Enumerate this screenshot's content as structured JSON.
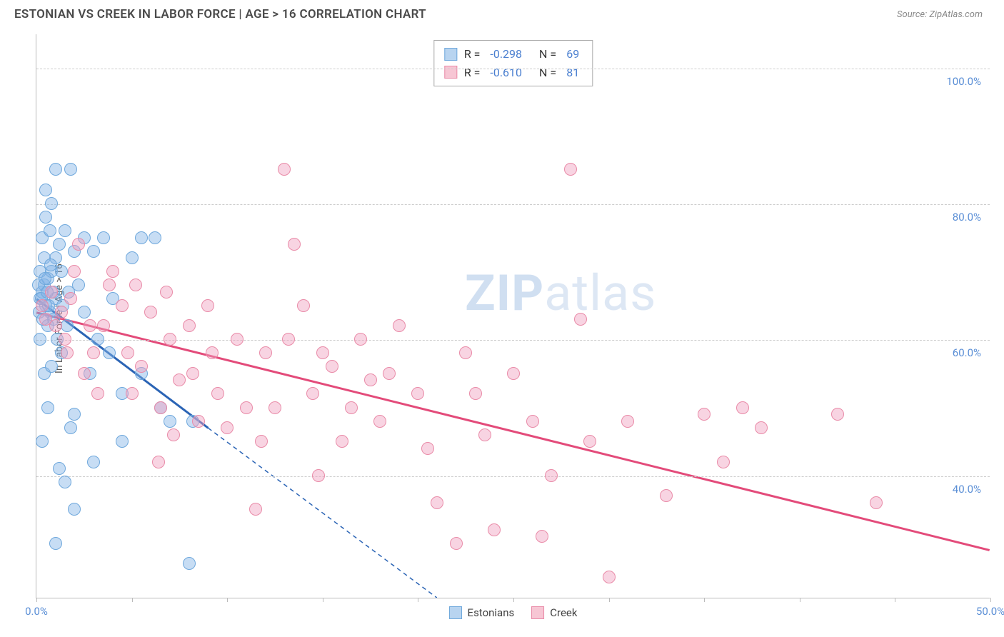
{
  "header": {
    "title": "ESTONIAN VS CREEK IN LABOR FORCE | AGE > 16 CORRELATION CHART",
    "source_prefix": "Source: ",
    "source_name": "ZipAtlas.com"
  },
  "watermark": {
    "zip": "ZIP",
    "atlas": "atlas"
  },
  "chart": {
    "type": "scatter",
    "y_axis_label": "In Labor Force | Age > 16",
    "xlim": [
      0,
      50
    ],
    "ylim": [
      22,
      105
    ],
    "x_ticks": [
      0,
      5,
      10,
      15,
      20,
      25,
      30,
      35,
      40,
      45,
      50
    ],
    "x_tick_labels": {
      "0": "0.0%",
      "50": "50.0%"
    },
    "y_gridlines": [
      40,
      60,
      80,
      100
    ],
    "y_tick_labels": {
      "40": "40.0%",
      "60": "60.0%",
      "80": "80.0%",
      "100": "100.0%"
    },
    "background_color": "#ffffff",
    "grid_color": "#cccccc",
    "axis_color": "#bbbbbb",
    "label_color": "#5b8fd6",
    "point_radius": 9,
    "point_opacity": 0.55
  },
  "stats_box": {
    "rows": [
      {
        "swatch_fill": "#b8d4f0",
        "swatch_border": "#6fa8dc",
        "r_label": "R =",
        "r_val": "-0.298",
        "n_label": "N =",
        "n_val": "69"
      },
      {
        "swatch_fill": "#f7c6d4",
        "swatch_border": "#e98ba8",
        "r_label": "R =",
        "r_val": "-0.610",
        "n_label": "N =",
        "n_val": "81"
      }
    ]
  },
  "legend": {
    "items": [
      {
        "label": "Estonians",
        "fill": "#b8d4f0",
        "border": "#6fa8dc"
      },
      {
        "label": "Creek",
        "fill": "#f7c6d4",
        "border": "#e98ba8"
      }
    ]
  },
  "series": [
    {
      "name": "Estonians",
      "color_fill": "rgba(130,180,230,0.45)",
      "color_border": "#6fa8dc",
      "trend": {
        "color": "#2b64b5",
        "width": 3,
        "solid": {
          "x1": 0,
          "y1": 66,
          "x2": 9,
          "y2": 47
        },
        "dashed": {
          "x1": 9,
          "y1": 47,
          "x2": 21,
          "y2": 22
        }
      },
      "points": [
        [
          0.2,
          66
        ],
        [
          0.3,
          67
        ],
        [
          0.4,
          68
        ],
        [
          0.5,
          65
        ],
        [
          0.6,
          69
        ],
        [
          0.7,
          64
        ],
        [
          0.8,
          70
        ],
        [
          0.9,
          63
        ],
        [
          1.0,
          72
        ],
        [
          1.1,
          60
        ],
        [
          1.2,
          74
        ],
        [
          1.3,
          58
        ],
        [
          1.5,
          76
        ],
        [
          1.0,
          85
        ],
        [
          1.8,
          85
        ],
        [
          0.5,
          78
        ],
        [
          0.8,
          80
        ],
        [
          2.0,
          73
        ],
        [
          2.5,
          75
        ],
        [
          3.0,
          73
        ],
        [
          3.5,
          75
        ],
        [
          0.4,
          55
        ],
        [
          0.6,
          50
        ],
        [
          1.8,
          47
        ],
        [
          1.2,
          41
        ],
        [
          1.5,
          39
        ],
        [
          2.5,
          64
        ],
        [
          3.2,
          60
        ],
        [
          4.0,
          66
        ],
        [
          5.0,
          72
        ],
        [
          5.5,
          75
        ],
        [
          6.2,
          75
        ],
        [
          1.0,
          30
        ],
        [
          2.0,
          35
        ],
        [
          0.3,
          45
        ],
        [
          2.8,
          55
        ],
        [
          3.8,
          58
        ],
        [
          4.5,
          52
        ],
        [
          5.5,
          55
        ],
        [
          6.5,
          50
        ],
        [
          7.0,
          48
        ],
        [
          8.2,
          48
        ],
        [
          8.0,
          27
        ],
        [
          4.5,
          45
        ],
        [
          3.0,
          42
        ],
        [
          2.2,
          68
        ],
        [
          0.2,
          60
        ],
        [
          0.4,
          72
        ],
        [
          0.6,
          62
        ],
        [
          0.9,
          67
        ],
        [
          1.3,
          70
        ],
        [
          0.3,
          75
        ],
        [
          0.7,
          76
        ],
        [
          0.5,
          82
        ],
        [
          1.0,
          66
        ],
        [
          1.6,
          62
        ],
        [
          2.0,
          49
        ],
        [
          0.8,
          56
        ],
        [
          0.1,
          68
        ],
        [
          0.2,
          70
        ],
        [
          0.15,
          64
        ],
        [
          0.25,
          66
        ],
        [
          0.35,
          63
        ],
        [
          0.45,
          69
        ],
        [
          0.55,
          67
        ],
        [
          0.65,
          65
        ],
        [
          0.75,
          71
        ],
        [
          1.4,
          65
        ],
        [
          1.7,
          67
        ]
      ]
    },
    {
      "name": "Creek",
      "color_fill": "rgba(240,160,190,0.45)",
      "color_border": "#e98ba8",
      "trend": {
        "color": "#e34b7a",
        "width": 3,
        "solid": {
          "x1": 0,
          "y1": 64,
          "x2": 50,
          "y2": 29
        },
        "dashed": null
      },
      "points": [
        [
          0.3,
          65
        ],
        [
          0.5,
          63
        ],
        [
          0.8,
          67
        ],
        [
          1.0,
          62
        ],
        [
          1.3,
          64
        ],
        [
          1.5,
          60
        ],
        [
          1.8,
          66
        ],
        [
          2.0,
          70
        ],
        [
          2.5,
          55
        ],
        [
          3.0,
          58
        ],
        [
          3.5,
          62
        ],
        [
          4.0,
          70
        ],
        [
          4.5,
          65
        ],
        [
          5.0,
          52
        ],
        [
          5.5,
          56
        ],
        [
          6.0,
          64
        ],
        [
          6.5,
          50
        ],
        [
          7.0,
          60
        ],
        [
          7.5,
          54
        ],
        [
          8.0,
          62
        ],
        [
          8.5,
          48
        ],
        [
          9.0,
          65
        ],
        [
          9.5,
          52
        ],
        [
          10.0,
          47
        ],
        [
          11.0,
          50
        ],
        [
          11.5,
          35
        ],
        [
          12.0,
          58
        ],
        [
          13.0,
          85
        ],
        [
          13.5,
          74
        ],
        [
          14.0,
          65
        ],
        [
          14.5,
          52
        ],
        [
          15.0,
          58
        ],
        [
          15.5,
          56
        ],
        [
          16.0,
          45
        ],
        [
          17.0,
          60
        ],
        [
          17.5,
          54
        ],
        [
          18.0,
          48
        ],
        [
          19.0,
          62
        ],
        [
          20.0,
          52
        ],
        [
          20.5,
          44
        ],
        [
          21.0,
          36
        ],
        [
          22.0,
          30
        ],
        [
          23.0,
          52
        ],
        [
          23.5,
          46
        ],
        [
          24.0,
          32
        ],
        [
          25.0,
          55
        ],
        [
          26.0,
          48
        ],
        [
          27.0,
          40
        ],
        [
          28.0,
          85
        ],
        [
          28.5,
          63
        ],
        [
          29.0,
          45
        ],
        [
          30.0,
          25
        ],
        [
          31.0,
          48
        ],
        [
          33.0,
          37
        ],
        [
          35.0,
          49
        ],
        [
          36.0,
          42
        ],
        [
          37.0,
          50
        ],
        [
          38.0,
          47
        ],
        [
          42.0,
          49
        ],
        [
          44.0,
          36
        ],
        [
          2.2,
          74
        ],
        [
          3.8,
          68
        ],
        [
          5.2,
          68
        ],
        [
          6.8,
          67
        ],
        [
          8.2,
          55
        ],
        [
          10.5,
          60
        ],
        [
          12.5,
          50
        ],
        [
          14.8,
          40
        ],
        [
          16.5,
          50
        ],
        [
          9.2,
          58
        ],
        [
          11.8,
          45
        ],
        [
          13.2,
          60
        ],
        [
          7.2,
          46
        ],
        [
          4.8,
          58
        ],
        [
          3.2,
          52
        ],
        [
          2.8,
          62
        ],
        [
          1.6,
          58
        ],
        [
          6.4,
          42
        ],
        [
          18.5,
          55
        ],
        [
          22.5,
          58
        ],
        [
          26.5,
          31
        ]
      ]
    }
  ]
}
